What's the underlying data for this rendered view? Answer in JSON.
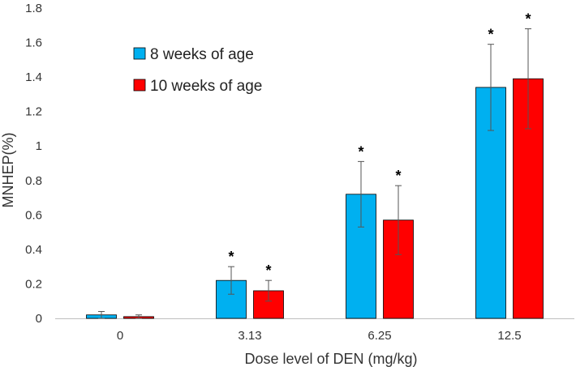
{
  "chart_data": {
    "type": "bar",
    "title": "",
    "xlabel": "Dose level of DEN (mg/kg)",
    "ylabel": "MNHEP(%)",
    "ylim": [
      0,
      1.8
    ],
    "yticks": [
      "0",
      "0.2",
      "0.4",
      "0.6",
      "0.8",
      "1",
      "1.2",
      "1.4",
      "1.6",
      "1.8"
    ],
    "categories": [
      "0",
      "3.13",
      "6.25",
      "12.5"
    ],
    "legend_position": "top-left",
    "significance_marker": "*",
    "series": [
      {
        "name": "8 weeks of age",
        "color": "#00B0F0",
        "values": [
          0.02,
          0.22,
          0.72,
          1.34
        ],
        "errors": [
          0.02,
          0.08,
          0.19,
          0.25
        ],
        "significant": [
          false,
          true,
          true,
          true
        ]
      },
      {
        "name": "10 weeks of age",
        "color": "#FF0000",
        "values": [
          0.01,
          0.16,
          0.57,
          1.39
        ],
        "errors": [
          0.01,
          0.06,
          0.2,
          0.29
        ],
        "significant": [
          false,
          true,
          true,
          true
        ]
      }
    ]
  }
}
